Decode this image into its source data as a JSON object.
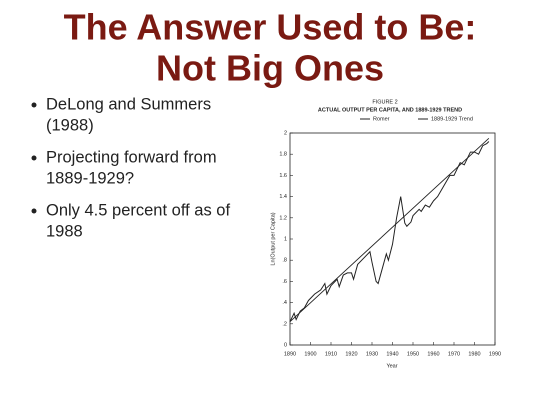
{
  "slide_title": [
    "The Answer Used to Be:",
    "Not Big Ones"
  ],
  "bullets": [
    [
      "DeLong and Summers",
      "(1988)"
    ],
    [
      "Projecting forward from",
      "1889-1929?"
    ],
    [
      "Only 4.5 percent off as of",
      "1988"
    ]
  ],
  "chart_data": {
    "type": "line",
    "figure_label": "FIGURE 2",
    "title": "ACTUAL OUTPUT PER CAPITA, AND 1889-1929 TREND",
    "x_label": "Year",
    "y_label": "Ln(Output per Capita)",
    "xlim": [
      1890,
      1990
    ],
    "xticks": [
      1890,
      1900,
      1910,
      1920,
      1930,
      1940,
      1950,
      1960,
      1970,
      1980,
      1990
    ],
    "ylim": [
      0,
      2
    ],
    "yticks": [
      0,
      {
        "value": 0.2,
        "label": ".2"
      },
      {
        "value": 0.4,
        "label": ".4"
      },
      {
        "value": 0.6,
        "label": ".6"
      },
      {
        "value": 0.8,
        "label": ".8"
      },
      1,
      1.2,
      1.4,
      1.6,
      1.8,
      2
    ],
    "series": [
      {
        "name": "Romer",
        "color": "#222222",
        "x": [
          1890,
          1892,
          1893,
          1895,
          1897,
          1899,
          1902,
          1905,
          1907,
          1908,
          1910,
          1913,
          1914,
          1916,
          1918,
          1920,
          1921,
          1923,
          1926,
          1929,
          1930,
          1932,
          1933,
          1935,
          1937,
          1938,
          1940,
          1942,
          1944,
          1946,
          1947,
          1949,
          1950,
          1953,
          1954,
          1956,
          1958,
          1960,
          1962,
          1965,
          1968,
          1970,
          1973,
          1975,
          1978,
          1980,
          1982,
          1984,
          1986,
          1987
        ],
        "values": [
          0.22,
          0.3,
          0.24,
          0.32,
          0.35,
          0.42,
          0.48,
          0.52,
          0.58,
          0.48,
          0.56,
          0.62,
          0.55,
          0.66,
          0.68,
          0.68,
          0.62,
          0.76,
          0.82,
          0.88,
          0.78,
          0.6,
          0.58,
          0.72,
          0.86,
          0.8,
          0.95,
          1.2,
          1.4,
          1.15,
          1.12,
          1.16,
          1.22,
          1.28,
          1.26,
          1.32,
          1.3,
          1.36,
          1.4,
          1.5,
          1.6,
          1.6,
          1.72,
          1.7,
          1.82,
          1.82,
          1.8,
          1.88,
          1.9,
          1.92
        ]
      },
      {
        "name": "1889-1929 Trend",
        "color": "#222222",
        "x": [
          1890,
          1987
        ],
        "values": [
          0.22,
          1.95
        ]
      }
    ]
  }
}
